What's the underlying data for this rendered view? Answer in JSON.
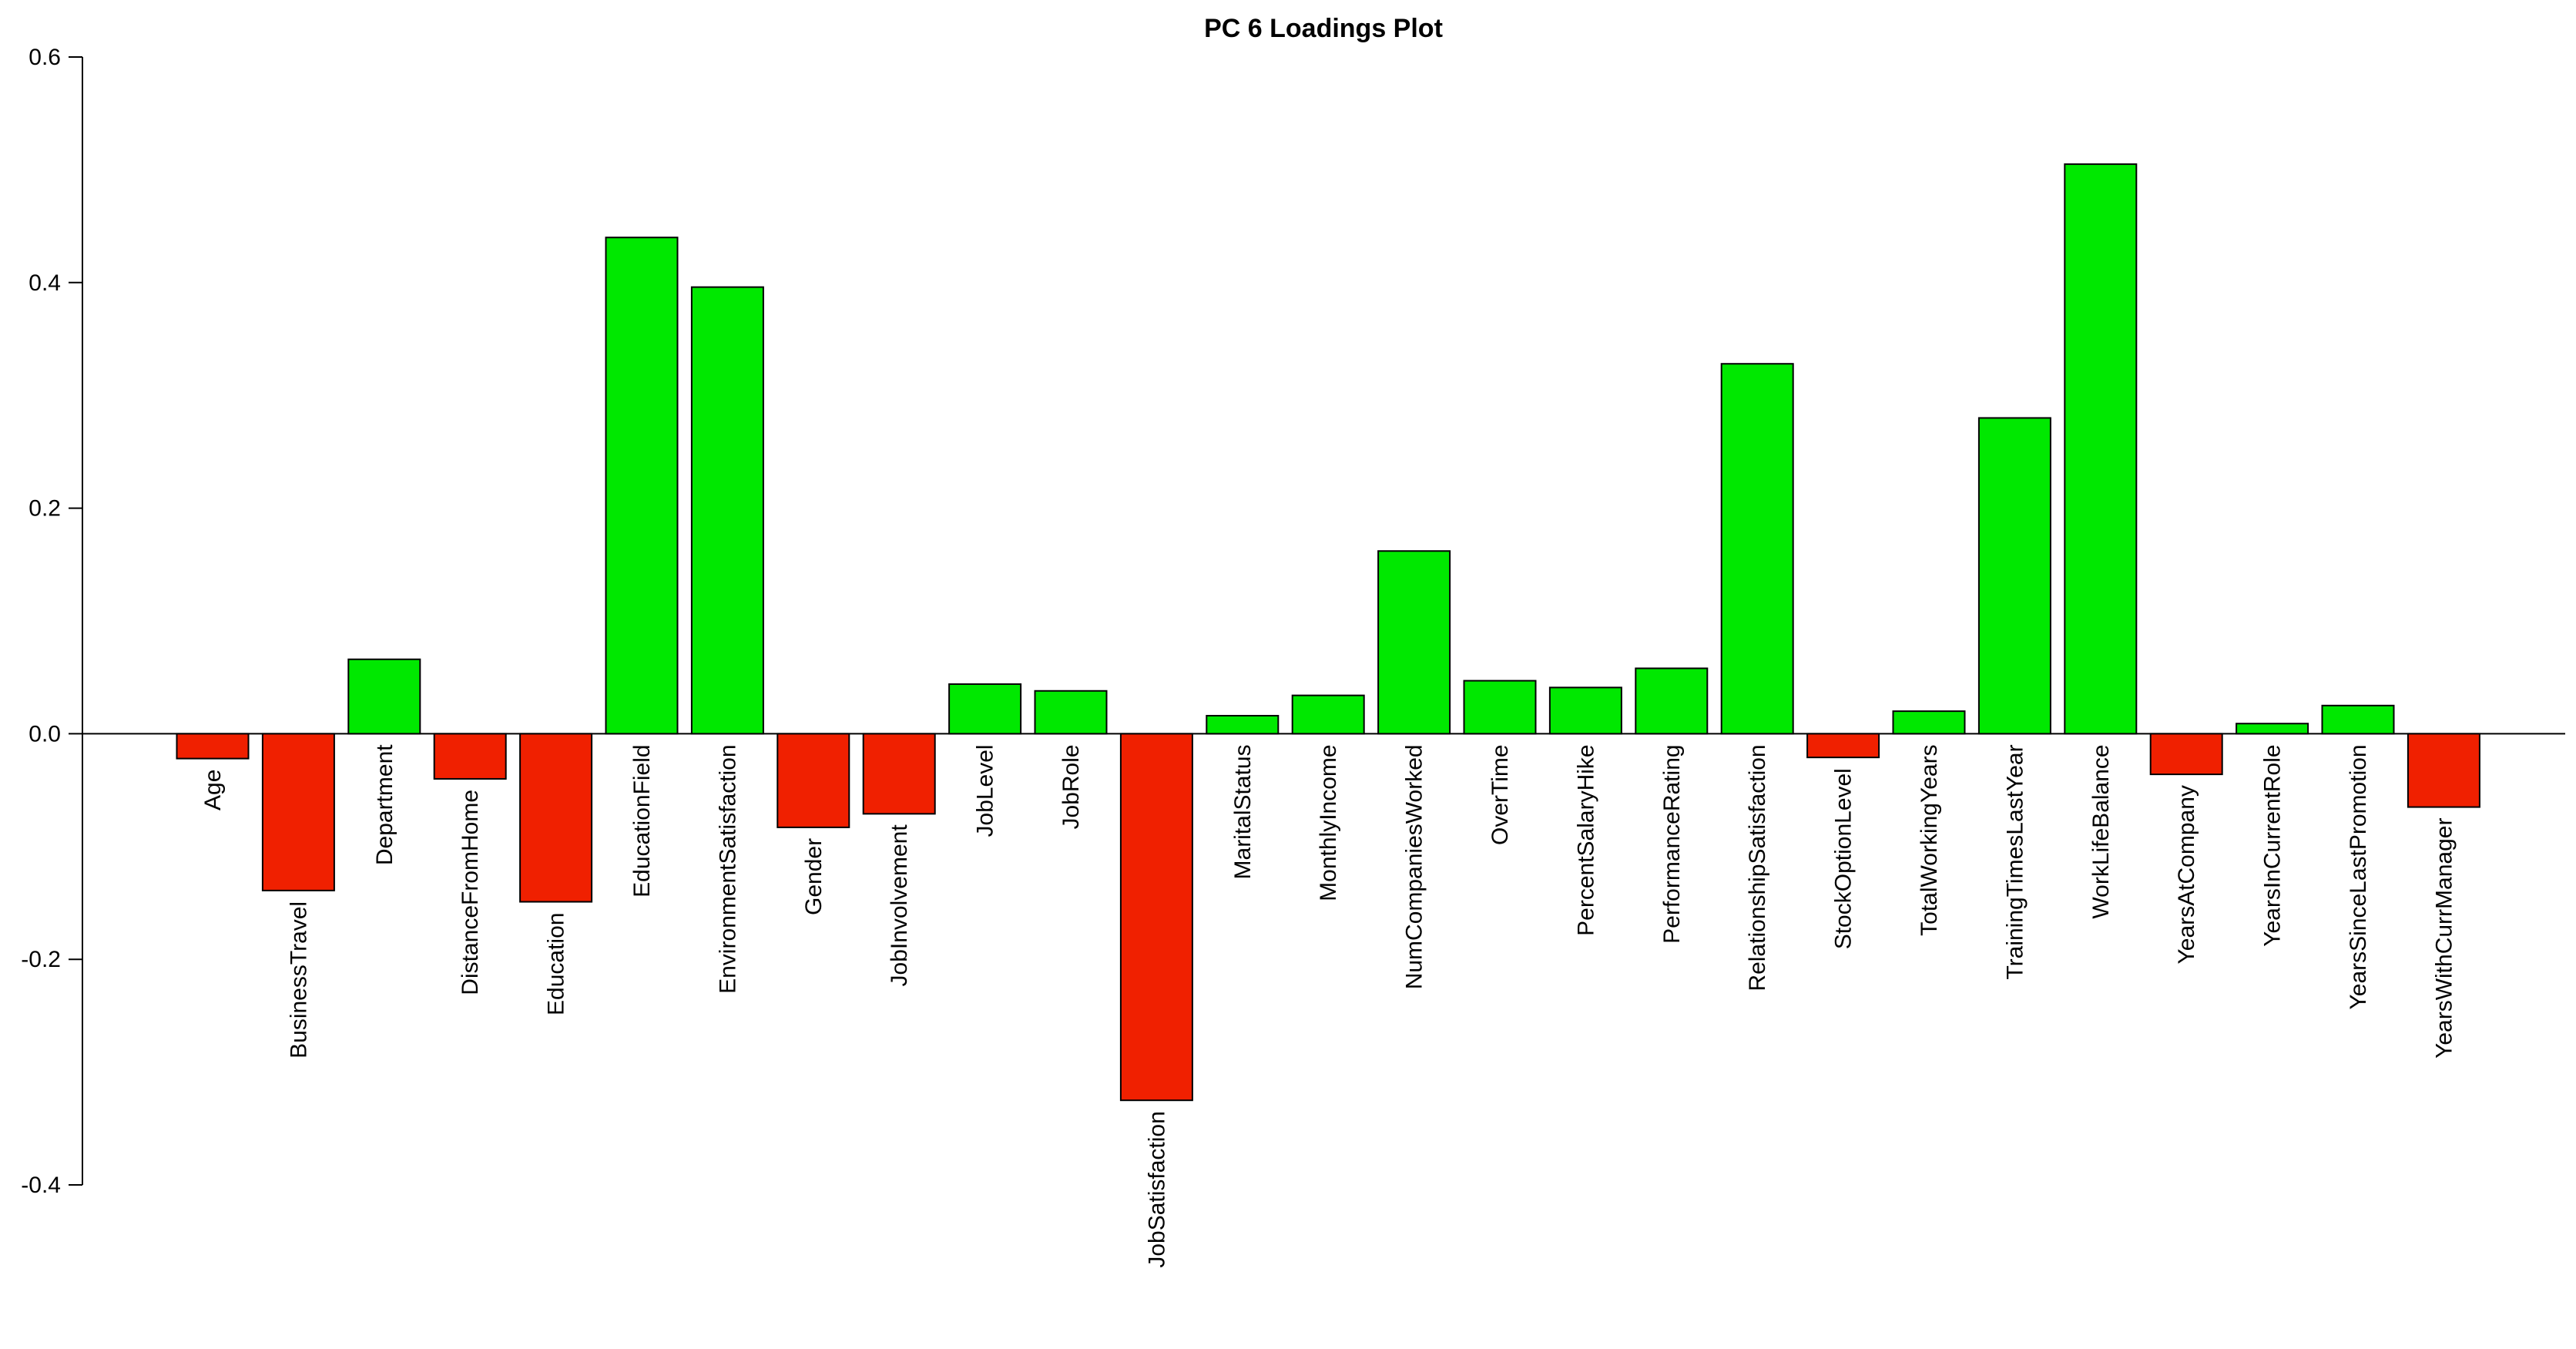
{
  "chart_data": {
    "type": "bar",
    "title": "PC 6 Loadings Plot",
    "xlabel": "",
    "ylabel": "",
    "ylim": [
      -0.4,
      0.6
    ],
    "yticks": [
      "-0.4",
      "-0.2",
      "0.0",
      "0.2",
      "0.4",
      "0.6"
    ],
    "grid": false,
    "legend": "none",
    "colors": {
      "positive": "#00e800",
      "negative": "#f02000",
      "stroke": "#000000"
    },
    "categories": [
      "Age",
      "BusinessTravel",
      "Department",
      "DistanceFromHome",
      "Education",
      "EducationField",
      "EnvironmentSatisfaction",
      "Gender",
      "JobInvolvement",
      "JobLevel",
      "JobRole",
      "JobSatisfaction",
      "MaritalStatus",
      "MonthlyIncome",
      "NumCompaniesWorked",
      "OverTime",
      "PercentSalaryHike",
      "PerformanceRating",
      "RelationshipSatisfaction",
      "StockOptionLevel",
      "TotalWorkingYears",
      "TrainingTimesLastYear",
      "WorkLifeBalance",
      "YearsAtCompany",
      "YearsInCurrentRole",
      "YearsSinceLastPromotion",
      "YearsWithCurrManager"
    ],
    "values": [
      -0.022,
      -0.139,
      0.066,
      -0.04,
      -0.149,
      0.44,
      0.396,
      -0.083,
      -0.071,
      0.044,
      0.038,
      -0.325,
      0.016,
      0.034,
      0.162,
      0.047,
      0.041,
      0.058,
      0.328,
      -0.021,
      0.02,
      0.28,
      0.505,
      -0.036,
      0.009,
      0.025,
      -0.065
    ]
  }
}
